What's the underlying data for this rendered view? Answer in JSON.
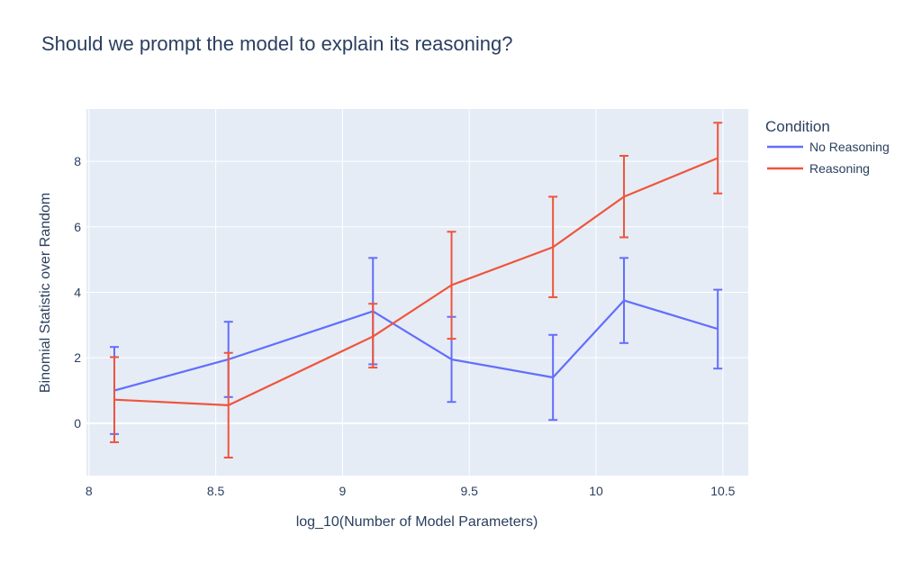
{
  "chart_data": {
    "type": "line",
    "title": "Should we prompt the model to explain its reasoning?",
    "xlabel": "log_10(Number of Model Parameters)",
    "ylabel": "Binomial Statistic over Random",
    "xlim": [
      7.99,
      10.6
    ],
    "ylim": [
      -1.6,
      9.6
    ],
    "x_ticks": [
      8,
      8.5,
      9,
      9.5,
      10,
      10.5
    ],
    "x_tick_labels": [
      "8",
      "8.5",
      "9",
      "9.5",
      "10",
      "10.5"
    ],
    "y_ticks": [
      0,
      2,
      4,
      6,
      8
    ],
    "y_tick_labels": [
      "0",
      "2",
      "4",
      "6",
      "8"
    ],
    "grid": true,
    "legend_title": "Condition",
    "legend_position": "top-right, outside plot",
    "series": [
      {
        "name": "No Reasoning",
        "color": "#636efa",
        "x": [
          8.1,
          8.55,
          9.12,
          9.43,
          9.83,
          10.11,
          10.48
        ],
        "y": [
          1.0,
          1.95,
          3.42,
          1.95,
          1.4,
          3.75,
          2.88
        ],
        "error_low": [
          -0.33,
          0.8,
          1.8,
          0.65,
          0.1,
          2.45,
          1.67
        ],
        "error_high": [
          2.33,
          3.1,
          5.05,
          3.25,
          2.7,
          5.05,
          4.08
        ]
      },
      {
        "name": "Reasoning",
        "color": "#ef553b",
        "x": [
          8.1,
          8.55,
          9.12,
          9.43,
          9.83,
          10.11,
          10.48
        ],
        "y": [
          0.72,
          0.55,
          2.65,
          4.22,
          5.38,
          6.92,
          8.1
        ],
        "error_low": [
          -0.58,
          -1.05,
          1.7,
          2.58,
          3.85,
          5.68,
          7.02
        ],
        "error_high": [
          2.02,
          2.15,
          3.65,
          5.85,
          6.92,
          8.17,
          9.18
        ]
      }
    ]
  }
}
